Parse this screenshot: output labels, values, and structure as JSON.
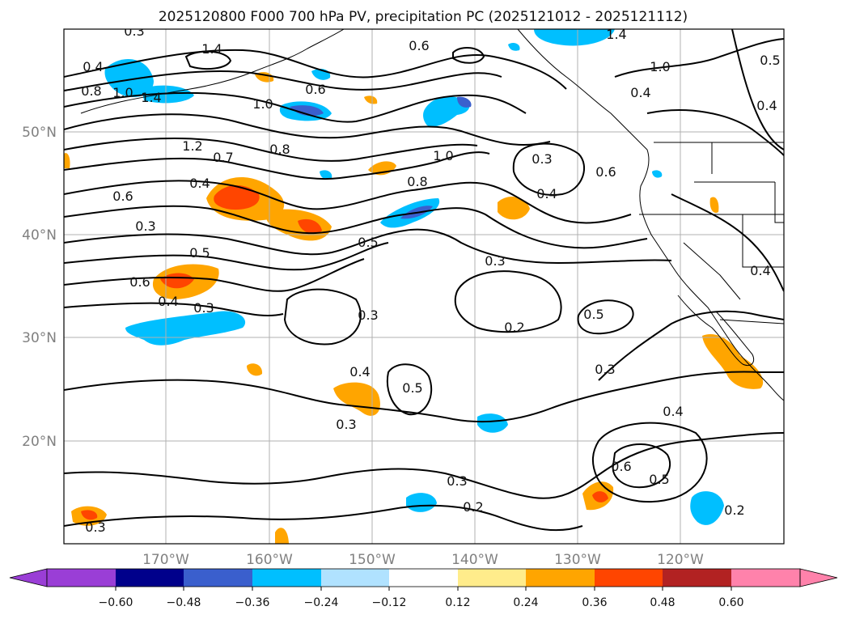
{
  "title": "2025120800 F000 700 hPa PV, precipitation PC (2025121012 - 2025121112)",
  "map": {
    "lon_labels": [
      "170°W",
      "160°W",
      "150°W",
      "140°W",
      "130°W",
      "120°W"
    ],
    "lat_labels": [
      "50°N",
      "40°N",
      "30°N",
      "20°N"
    ],
    "contour_labels": [
      "0.4",
      "0.8",
      "1.0",
      "1.4",
      "1.4",
      "0.6",
      "0.6",
      "1.0",
      "1.4",
      "1.0",
      "0.4",
      "0.5",
      "0.4",
      "1.2",
      "0.7",
      "0.8",
      "1.0",
      "0.3",
      "0.6",
      "0.4",
      "0.8",
      "0.4",
      "0.6",
      "0.3",
      "0.5",
      "0.5",
      "0.3",
      "0.6",
      "0.4",
      "0.4",
      "0.3",
      "0.5",
      "0.2",
      "0.3",
      "0.4",
      "0.5",
      "0.3",
      "0.3",
      "0.4",
      "0.3",
      "0.6",
      "0.5",
      "0.2",
      "0.3",
      "0.2",
      "0.3"
    ]
  },
  "colorbar": {
    "colors": [
      "#9a3ed6",
      "#00008b",
      "#3a5fcd",
      "#00bfff",
      "#b0e2ff",
      "#ffffff",
      "#ffec8b",
      "#ffa500",
      "#ff4500",
      "#b22222",
      "#ff82ab"
    ],
    "tick_labels": [
      "−0.60",
      "−0.48",
      "−0.36",
      "−0.24",
      "−0.12",
      "0.12",
      "0.24",
      "0.36",
      "0.48",
      "0.60"
    ]
  }
}
